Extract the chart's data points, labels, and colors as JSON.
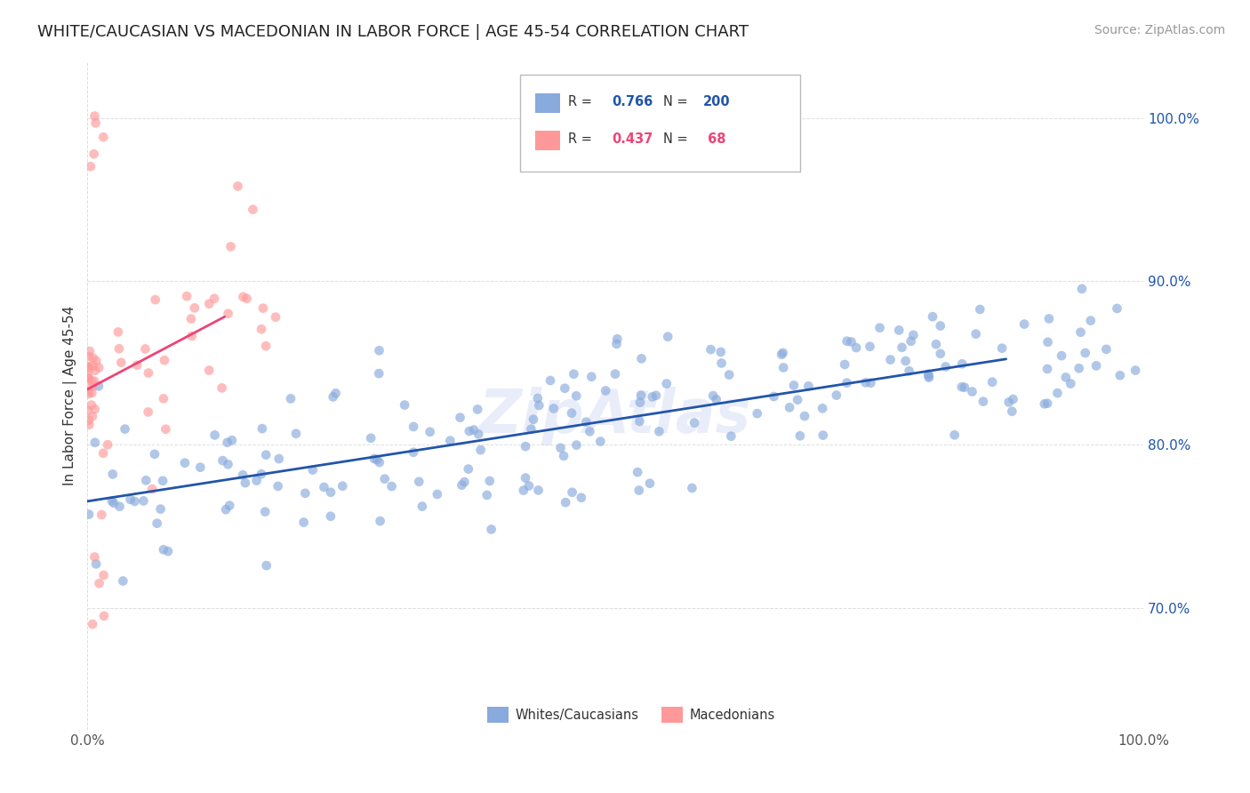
{
  "title": "WHITE/CAUCASIAN VS MACEDONIAN IN LABOR FORCE | AGE 45-54 CORRELATION CHART",
  "source": "Source: ZipAtlas.com",
  "ylabel": "In Labor Force | Age 45-54",
  "watermark": "ZipAtlas",
  "legend_label1": "Whites/Caucasians",
  "legend_label2": "Macedonians",
  "blue_color": "#88AADD",
  "pink_color": "#FF9999",
  "trend_blue": "#2255AA",
  "trend_pink": "#EE4477",
  "blue_r": 0.766,
  "blue_n": 200,
  "pink_r": 0.437,
  "pink_n": 68,
  "xmin": 0.0,
  "xmax": 1.0,
  "ymin": 0.625,
  "ymax": 1.035,
  "yticks": [
    0.7,
    0.8,
    0.9,
    1.0
  ],
  "ytick_labels": [
    "70.0%",
    "80.0%",
    "90.0%",
    "100.0%"
  ],
  "xtick_labels_bottom": [
    "0.0%",
    "100.0%"
  ],
  "xticks_bottom": [
    0.0,
    1.0
  ],
  "grid_color": "#DDDDDD",
  "bg_color": "#FFFFFF",
  "title_fontsize": 13,
  "axis_fontsize": 11,
  "tick_fontsize": 11,
  "source_fontsize": 10,
  "watermark_fontsize": 48,
  "watermark_color": "#AABBEE",
  "watermark_alpha": 0.25
}
